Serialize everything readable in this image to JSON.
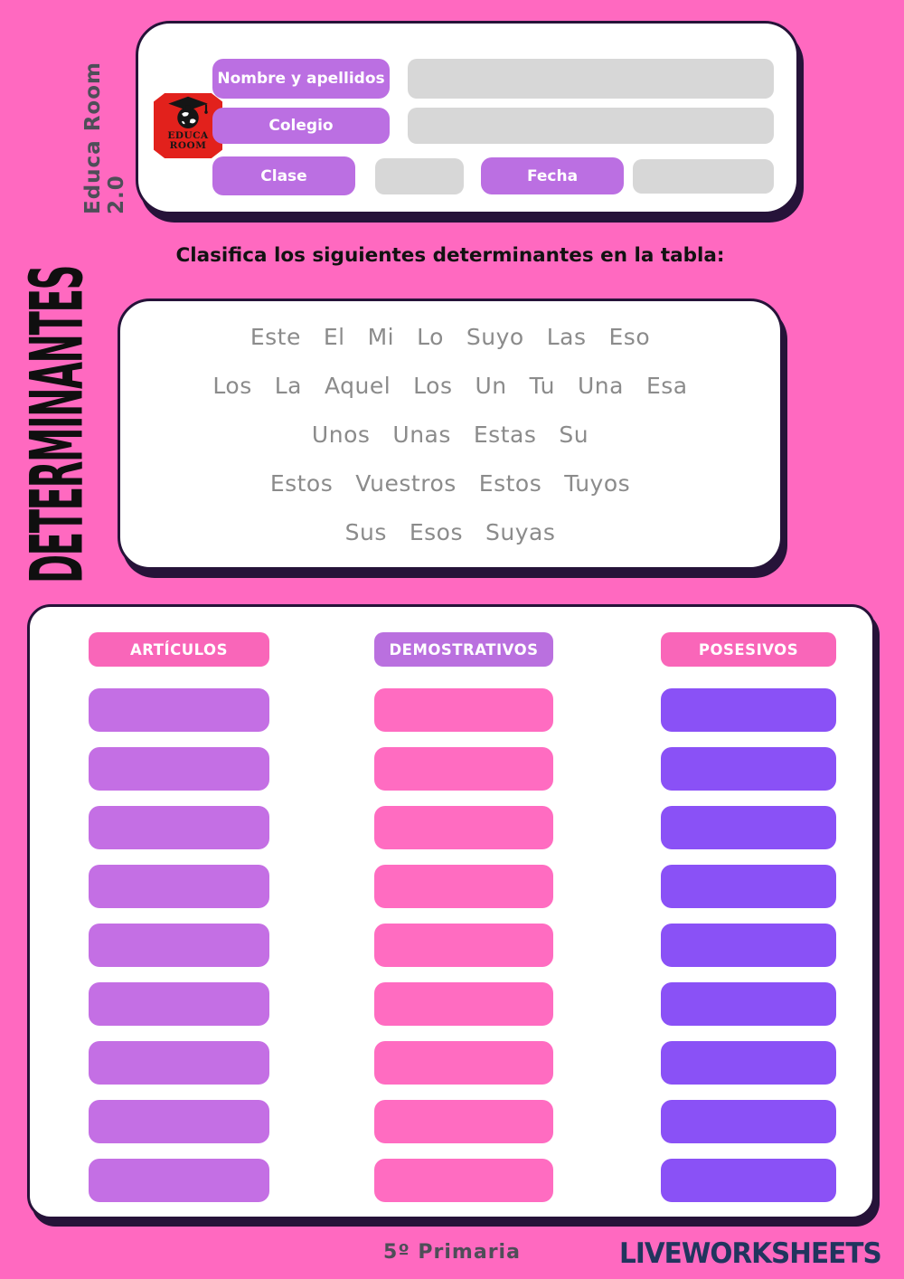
{
  "colors": {
    "bg": "#ff69c0",
    "dark": "#261339",
    "labelPurple": "#bb6fe2",
    "gray": "#d7d7d7",
    "wordGray": "#8b8b8b",
    "dim": "#4e4e58",
    "navy": "#21355e",
    "logoRed": "#e2211c",
    "headerPink": "#f966b9",
    "headerPurple": "#ba70df",
    "slotPurple": "#c46fe4",
    "slotPink": "#ff6cc1",
    "slotViolet": "#8a51f6"
  },
  "header_card": {
    "vertical_label": "Educa Room 2.0",
    "logo": {
      "line1": "EDUCA",
      "line2": "ROOM"
    },
    "fields": [
      {
        "label": "Nombre y apellidos"
      },
      {
        "label": "Colegio"
      },
      {
        "label": "Clase"
      },
      {
        "label": "Fecha"
      }
    ]
  },
  "sidebar_title": "DETERMINANTES",
  "instruction": "Clasifica los siguientes determinantes en la tabla:",
  "wordbank": {
    "rows": [
      [
        "Este",
        "El",
        "Mi",
        "Lo",
        "Suyo",
        "Las",
        "Eso"
      ],
      [
        "Los",
        "La",
        "Aquel",
        "Los",
        "Un",
        "Tu",
        "Una",
        "Esa"
      ],
      [
        "Unos",
        "Unas",
        "Estas",
        "Su"
      ],
      [
        "Estos",
        "Vuestros",
        "Estos",
        "Tuyos"
      ],
      [
        "Sus",
        "Esos",
        "Suyas"
      ]
    ]
  },
  "table": {
    "columns": [
      {
        "key": "articulos",
        "header": "ARTÍCULOS",
        "header_color": "#f966b9",
        "slot_color": "#c46fe4",
        "slots": 9
      },
      {
        "key": "demostrativos",
        "header": "DEMOSTRATIVOS",
        "header_color": "#ba70df",
        "slot_color": "#ff6cc1",
        "slots": 9
      },
      {
        "key": "posesivos",
        "header": "POSESIVOS",
        "header_color": "#f966b9",
        "slot_color": "#8a51f6",
        "slots": 9
      }
    ]
  },
  "footer": {
    "grade": "5º Primaria",
    "brand": "LIVEWORKSHEETS",
    "brand_squares": [
      {
        "letter": "L",
        "color": "#62b832"
      },
      {
        "letter": "I",
        "color": "#fdbe11"
      },
      {
        "letter": "V",
        "color": "#2f6fd0"
      },
      {
        "letter": "E",
        "color": "#e03c31"
      }
    ]
  }
}
